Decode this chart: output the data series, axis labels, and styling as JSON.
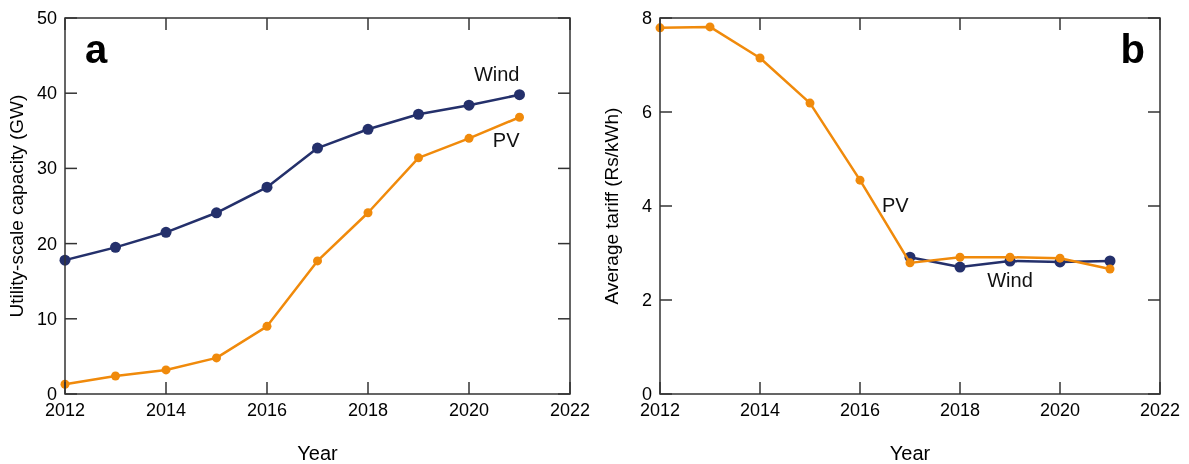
{
  "chart_data": [
    {
      "type": "line",
      "title": "a",
      "xlabel": "Year",
      "ylabel": "Utility-scale capacity (GW)",
      "x": [
        2012,
        2013,
        2014,
        2015,
        2016,
        2017,
        2018,
        2019,
        2020,
        2021
      ],
      "xlim": [
        2012,
        2022
      ],
      "xticks": [
        2012,
        2014,
        2016,
        2018,
        2020,
        2022
      ],
      "ylim": [
        0,
        50
      ],
      "yticks": [
        0,
        10,
        20,
        30,
        40,
        50
      ],
      "marker": "circle",
      "series": [
        {
          "name": "Wind",
          "color": "#24306b",
          "values": [
            17.8,
            19.5,
            21.5,
            24.1,
            27.5,
            32.7,
            35.2,
            37.2,
            38.4,
            39.8
          ]
        },
        {
          "name": "PV",
          "color": "#f08a0b",
          "values": [
            1.3,
            2.4,
            3.2,
            4.8,
            9.0,
            17.7,
            24.1,
            31.4,
            34.0,
            36.8
          ]
        }
      ]
    },
    {
      "type": "line",
      "title": "b",
      "xlabel": "Year",
      "ylabel": "Average tariff (Rs/kWh)",
      "x": [
        2012,
        2013,
        2014,
        2015,
        2016,
        2017,
        2018,
        2019,
        2020,
        2021
      ],
      "xlim": [
        2012,
        2022
      ],
      "xticks": [
        2012,
        2014,
        2016,
        2018,
        2020,
        2022
      ],
      "ylim": [
        0,
        8
      ],
      "yticks": [
        0,
        2,
        4,
        6,
        8
      ],
      "marker": "circle",
      "series": [
        {
          "name": "Wind",
          "color": "#24306b",
          "values": [
            null,
            null,
            null,
            null,
            null,
            2.91,
            2.7,
            2.83,
            2.81,
            2.83
          ]
        },
        {
          "name": "PV",
          "color": "#f08a0b",
          "values": [
            7.79,
            7.81,
            7.15,
            6.19,
            4.55,
            2.79,
            2.91,
            2.91,
            2.89,
            2.66
          ]
        }
      ]
    }
  ]
}
